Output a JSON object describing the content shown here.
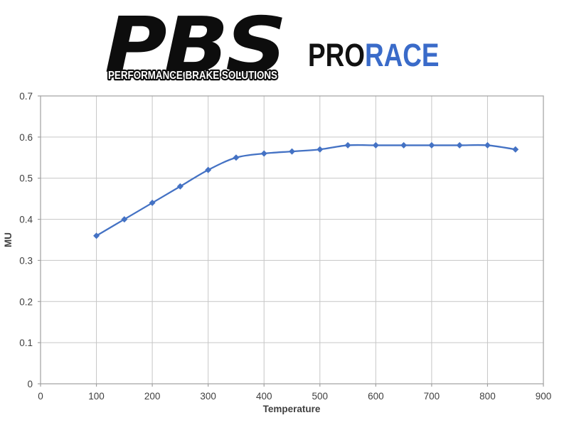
{
  "header": {
    "brand": "PBS",
    "tagline": "PERFORMANCE BRAKE SOLUTIONS",
    "product_pro": "PRO",
    "product_race": "RACE",
    "brand_color": "#111111",
    "race_color": "#3a6bc9"
  },
  "chart_data": {
    "type": "line",
    "title": "",
    "xlabel": "Temperature",
    "ylabel": "MU",
    "x": [
      100,
      150,
      200,
      250,
      300,
      350,
      400,
      450,
      500,
      550,
      600,
      650,
      700,
      750,
      800,
      850
    ],
    "series": [
      {
        "name": "MU",
        "values": [
          0.36,
          0.4,
          0.44,
          0.48,
          0.52,
          0.55,
          0.56,
          0.565,
          0.57,
          0.58,
          0.58,
          0.58,
          0.58,
          0.58,
          0.58,
          0.57
        ]
      }
    ],
    "xlim": [
      0,
      900
    ],
    "ylim": [
      0,
      0.7
    ],
    "x_ticks": [
      0,
      100,
      200,
      300,
      400,
      500,
      600,
      700,
      800,
      900
    ],
    "y_ticks": [
      "0",
      "0.1",
      "0.2",
      "0.3",
      "0.4",
      "0.5",
      "0.6",
      "0.7"
    ],
    "grid": true,
    "legend": "none",
    "line_color": "#4472c4",
    "marker": "diamond",
    "grid_color": "#c6c6c6",
    "border_color": "#a0a0a0"
  }
}
